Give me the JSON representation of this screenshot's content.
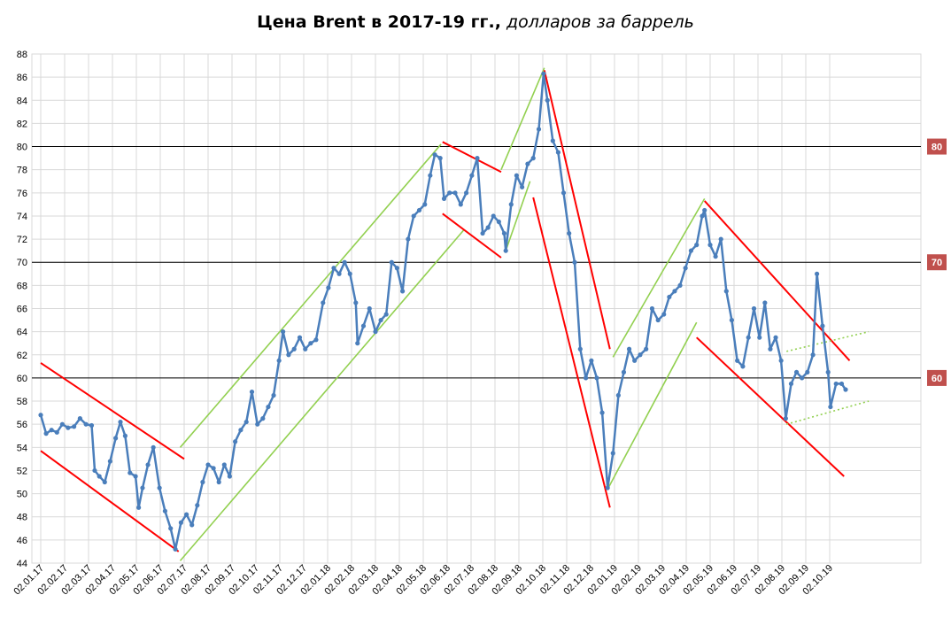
{
  "title": {
    "main": "Цена Brent в 2017-19 гг.,",
    "sub": " долларов за баррель"
  },
  "colors": {
    "series": "#4a7ebb",
    "support_resistance_red": "#ff0000",
    "channel_green": "#92d050",
    "level_badge": "#c0504d",
    "grid": "#d9d9d9"
  },
  "chart_data": {
    "type": "line",
    "title": "Цена Brent в 2017-19 гг., долларов за баррель",
    "xlabel": "",
    "ylabel": "",
    "ylim": [
      44,
      88
    ],
    "y_ticks": [
      44,
      46,
      48,
      50,
      52,
      54,
      56,
      58,
      60,
      62,
      64,
      66,
      68,
      70,
      72,
      74,
      76,
      78,
      80,
      82,
      84,
      86,
      88
    ],
    "x_ticks": [
      "02.01.17",
      "02.02.17",
      "02.03.17",
      "02.04.17",
      "02.05.17",
      "02.06.17",
      "02.07.17",
      "02.08.17",
      "02.09.17",
      "02.10.17",
      "02.11.17",
      "02.12.17",
      "02.01.18",
      "02.02.18",
      "02.03.18",
      "02.04.18",
      "02.05.18",
      "02.06.18",
      "02.07.18",
      "02.08.18",
      "02.09.18",
      "02.10.18",
      "02.11.18",
      "02.12.18",
      "02.01.19",
      "02.02.19",
      "02.03.19",
      "02.04.19",
      "02.05.19",
      "02.06.19",
      "02.07.19",
      "02.08.19",
      "02.09.19",
      "02.10.19"
    ],
    "grid": true,
    "levels": [
      {
        "value": 80,
        "label": "80"
      },
      {
        "value": 70,
        "label": "70"
      },
      {
        "value": 60,
        "label": "60"
      }
    ],
    "series": [
      {
        "points": [
          [
            "02.01.17",
            56.8
          ],
          [
            "09.01.17",
            55.2
          ],
          [
            "16.01.17",
            55.5
          ],
          [
            "23.01.17",
            55.3
          ],
          [
            "30.01.17",
            56.0
          ],
          [
            "06.02.17",
            55.7
          ],
          [
            "13.02.17",
            55.8
          ],
          [
            "20.02.17",
            56.5
          ],
          [
            "27.02.17",
            56.0
          ],
          [
            "06.03.17",
            55.9
          ],
          [
            "10.03.17",
            52.0
          ],
          [
            "16.03.17",
            51.5
          ],
          [
            "23.03.17",
            51.0
          ],
          [
            "30.03.17",
            52.8
          ],
          [
            "06.04.17",
            54.8
          ],
          [
            "12.04.17",
            56.2
          ],
          [
            "18.04.17",
            55.0
          ],
          [
            "24.04.17",
            51.8
          ],
          [
            "01.05.17",
            51.5
          ],
          [
            "05.05.17",
            48.8
          ],
          [
            "10.05.17",
            50.5
          ],
          [
            "17.05.17",
            52.5
          ],
          [
            "24.05.17",
            54.0
          ],
          [
            "01.06.17",
            50.5
          ],
          [
            "08.06.17",
            48.5
          ],
          [
            "15.06.17",
            47.0
          ],
          [
            "21.06.17",
            45.2
          ],
          [
            "28.06.17",
            47.5
          ],
          [
            "05.07.17",
            48.2
          ],
          [
            "12.07.17",
            47.3
          ],
          [
            "19.07.17",
            49.0
          ],
          [
            "26.07.17",
            51.0
          ],
          [
            "02.08.17",
            52.5
          ],
          [
            "09.08.17",
            52.2
          ],
          [
            "16.08.17",
            51.0
          ],
          [
            "23.08.17",
            52.5
          ],
          [
            "30.08.17",
            51.5
          ],
          [
            "06.09.17",
            54.5
          ],
          [
            "13.09.17",
            55.5
          ],
          [
            "20.09.17",
            56.2
          ],
          [
            "27.09.17",
            58.8
          ],
          [
            "04.10.17",
            56.0
          ],
          [
            "11.10.17",
            56.5
          ],
          [
            "18.10.17",
            57.5
          ],
          [
            "25.10.17",
            58.5
          ],
          [
            "01.11.17",
            61.5
          ],
          [
            "06.11.17",
            64.0
          ],
          [
            "13.11.17",
            62.0
          ],
          [
            "20.11.17",
            62.5
          ],
          [
            "27.11.17",
            63.5
          ],
          [
            "04.12.17",
            62.5
          ],
          [
            "11.12.17",
            63.0
          ],
          [
            "18.12.17",
            63.3
          ],
          [
            "27.12.17",
            66.5
          ],
          [
            "03.01.18",
            67.8
          ],
          [
            "10.01.18",
            69.5
          ],
          [
            "17.01.18",
            69.0
          ],
          [
            "24.01.18",
            70.0
          ],
          [
            "31.01.18",
            69.0
          ],
          [
            "07.02.18",
            66.5
          ],
          [
            "09.02.18",
            63.0
          ],
          [
            "16.02.18",
            64.5
          ],
          [
            "23.02.18",
            66.0
          ],
          [
            "02.03.18",
            64.0
          ],
          [
            "09.03.18",
            65.0
          ],
          [
            "16.03.18",
            65.5
          ],
          [
            "23.03.18",
            70.0
          ],
          [
            "30.03.18",
            69.5
          ],
          [
            "06.04.18",
            67.5
          ],
          [
            "13.04.18",
            72.0
          ],
          [
            "20.04.18",
            74.0
          ],
          [
            "27.04.18",
            74.5
          ],
          [
            "04.05.18",
            75.0
          ],
          [
            "11.05.18",
            77.5
          ],
          [
            "17.05.18",
            79.3
          ],
          [
            "24.05.18",
            79.0
          ],
          [
            "29.05.18",
            75.5
          ],
          [
            "05.06.18",
            76.0
          ],
          [
            "12.06.18",
            76.0
          ],
          [
            "19.06.18",
            75.0
          ],
          [
            "26.06.18",
            76.0
          ],
          [
            "03.07.18",
            77.5
          ],
          [
            "10.07.18",
            79.0
          ],
          [
            "17.07.18",
            72.5
          ],
          [
            "24.07.18",
            73.0
          ],
          [
            "31.07.18",
            74.0
          ],
          [
            "07.08.18",
            73.5
          ],
          [
            "14.08.18",
            72.5
          ],
          [
            "16.08.18",
            71.0
          ],
          [
            "23.08.18",
            75.0
          ],
          [
            "30.08.18",
            77.5
          ],
          [
            "06.09.18",
            76.5
          ],
          [
            "13.09.18",
            78.5
          ],
          [
            "20.09.18",
            79.0
          ],
          [
            "27.09.18",
            81.5
          ],
          [
            "03.10.18",
            86.3
          ],
          [
            "08.10.18",
            84.0
          ],
          [
            "15.10.18",
            80.5
          ],
          [
            "22.10.18",
            79.5
          ],
          [
            "29.10.18",
            76.0
          ],
          [
            "05.11.18",
            72.5
          ],
          [
            "12.11.18",
            70.0
          ],
          [
            "19.11.18",
            62.5
          ],
          [
            "26.11.18",
            60.0
          ],
          [
            "03.12.18",
            61.5
          ],
          [
            "10.12.18",
            60.0
          ],
          [
            "17.12.18",
            57.0
          ],
          [
            "24.12.18",
            50.5
          ],
          [
            "31.12.18",
            53.5
          ],
          [
            "07.01.19",
            58.5
          ],
          [
            "14.01.19",
            60.5
          ],
          [
            "21.01.19",
            62.5
          ],
          [
            "28.01.19",
            61.5
          ],
          [
            "04.02.19",
            62.0
          ],
          [
            "11.02.19",
            62.5
          ],
          [
            "18.02.19",
            66.0
          ],
          [
            "25.02.19",
            65.0
          ],
          [
            "04.03.19",
            65.5
          ],
          [
            "11.03.19",
            67.0
          ],
          [
            "18.03.19",
            67.5
          ],
          [
            "25.03.19",
            68.0
          ],
          [
            "01.04.19",
            69.5
          ],
          [
            "08.04.19",
            71.0
          ],
          [
            "15.04.19",
            71.5
          ],
          [
            "22.04.19",
            74.0
          ],
          [
            "25.04.19",
            74.5
          ],
          [
            "02.05.19",
            71.5
          ],
          [
            "09.05.19",
            70.5
          ],
          [
            "16.05.19",
            72.0
          ],
          [
            "23.05.19",
            67.5
          ],
          [
            "30.05.19",
            65.0
          ],
          [
            "06.06.19",
            61.5
          ],
          [
            "13.06.19",
            61.0
          ],
          [
            "20.06.19",
            63.5
          ],
          [
            "27.06.19",
            66.0
          ],
          [
            "04.07.19",
            63.5
          ],
          [
            "11.07.19",
            66.5
          ],
          [
            "18.07.19",
            62.5
          ],
          [
            "25.07.19",
            63.5
          ],
          [
            "01.08.19",
            61.5
          ],
          [
            "07.08.19",
            56.5
          ],
          [
            "14.08.19",
            59.5
          ],
          [
            "21.08.19",
            60.5
          ],
          [
            "28.08.19",
            60.0
          ],
          [
            "04.09.19",
            60.5
          ],
          [
            "11.09.19",
            62.0
          ],
          [
            "16.09.19",
            69.0
          ],
          [
            "23.09.19",
            64.5
          ],
          [
            "30.09.19",
            60.5
          ],
          [
            "03.10.19",
            57.5
          ],
          [
            "10.10.19",
            59.5
          ],
          [
            "17.10.19",
            59.5
          ],
          [
            "22.10.19",
            59.0
          ]
        ]
      }
    ]
  }
}
